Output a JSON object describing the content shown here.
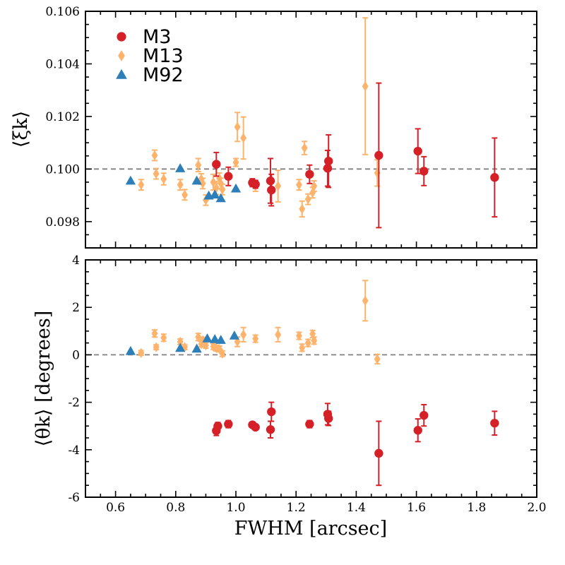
{
  "chart_data": {
    "type": "scatter",
    "x_label": "FWHM [arcsec]",
    "x_range": [
      0.5,
      2.0
    ],
    "x_ticks": [
      "0.6",
      "0.8",
      "1.0",
      "1.2",
      "1.4",
      "1.6",
      "1.8",
      "2.0"
    ],
    "colors": {
      "M3": "#d62027",
      "M13": "#fdb36b",
      "M92": "#2c7fb8",
      "reference": "#808080"
    },
    "legend": {
      "position": "upper-left",
      "entries": [
        {
          "name": "M3",
          "marker": "circle"
        },
        {
          "name": "M13",
          "marker": "diamond"
        },
        {
          "name": "M92",
          "marker": "triangle"
        }
      ]
    },
    "panels": [
      {
        "id": "top",
        "y_label": "⟨ξk⟩",
        "y_range": [
          0.097,
          0.106
        ],
        "y_ticks": [
          "0.098",
          "0.100",
          "0.102",
          "0.104",
          "0.106"
        ],
        "reference_line": 0.1,
        "series": [
          {
            "name": "M3",
            "marker": "circle",
            "points": [
              {
                "x": 0.935,
                "y": 0.10018,
                "err": 0.00045
              },
              {
                "x": 0.975,
                "y": 0.09972,
                "err": 0.00035
              },
              {
                "x": 1.055,
                "y": 0.09948,
                "err": 0.00015
              },
              {
                "x": 1.065,
                "y": 0.09942,
                "err": 0.00015
              },
              {
                "x": 1.115,
                "y": 0.09955,
                "err": 0.00085
              },
              {
                "x": 1.118,
                "y": 0.0992,
                "err": 0.0006
              },
              {
                "x": 1.245,
                "y": 0.0998,
                "err": 0.00035
              },
              {
                "x": 1.305,
                "y": 0.10003,
                "err": 0.00068
              },
              {
                "x": 1.308,
                "y": 0.1003,
                "err": 0.001
              },
              {
                "x": 1.475,
                "y": 0.10052,
                "err": 0.00275
              },
              {
                "x": 1.605,
                "y": 0.10068,
                "err": 0.00085
              },
              {
                "x": 1.625,
                "y": 0.09992,
                "err": 0.00055
              },
              {
                "x": 1.86,
                "y": 0.09968,
                "err": 0.0015
              }
            ]
          },
          {
            "name": "M13",
            "marker": "diamond",
            "points": [
              {
                "x": 0.685,
                "y": 0.0994,
                "err": 0.0002
              },
              {
                "x": 0.73,
                "y": 0.10052,
                "err": 0.0002
              },
              {
                "x": 0.735,
                "y": 0.09982,
                "err": 0.0002
              },
              {
                "x": 0.76,
                "y": 0.09962,
                "err": 0.00022
              },
              {
                "x": 0.815,
                "y": 0.0994,
                "err": 0.0002
              },
              {
                "x": 0.83,
                "y": 0.09902,
                "err": 0.0002
              },
              {
                "x": 0.875,
                "y": 0.10015,
                "err": 0.00025
              },
              {
                "x": 0.885,
                "y": 0.09962,
                "err": 0.0002
              },
              {
                "x": 0.89,
                "y": 0.09945,
                "err": 0.0002
              },
              {
                "x": 0.9,
                "y": 0.09882,
                "err": 0.0002
              },
              {
                "x": 0.925,
                "y": 0.0995,
                "err": 0.0003
              },
              {
                "x": 0.935,
                "y": 0.09928,
                "err": 0.00025
              },
              {
                "x": 0.945,
                "y": 0.09965,
                "err": 0.0002
              },
              {
                "x": 0.95,
                "y": 0.09945,
                "err": 0.0002
              },
              {
                "x": 0.955,
                "y": 0.09922,
                "err": 0.0002
              },
              {
                "x": 1.0,
                "y": 0.10025,
                "err": 0.00015
              },
              {
                "x": 1.005,
                "y": 0.1016,
                "err": 0.00055
              },
              {
                "x": 1.025,
                "y": 0.10118,
                "err": 0.0008
              },
              {
                "x": 1.065,
                "y": 0.09935,
                "err": 0.0002
              },
              {
                "x": 1.14,
                "y": 0.09935,
                "err": 0.0006
              },
              {
                "x": 1.21,
                "y": 0.0994,
                "err": 0.0002
              },
              {
                "x": 1.22,
                "y": 0.09848,
                "err": 0.0003
              },
              {
                "x": 1.228,
                "y": 0.1008,
                "err": 0.00025
              },
              {
                "x": 1.24,
                "y": 0.09885,
                "err": 0.0002
              },
              {
                "x": 1.255,
                "y": 0.0991,
                "err": 0.0002
              },
              {
                "x": 1.26,
                "y": 0.09935,
                "err": 0.0002
              },
              {
                "x": 1.43,
                "y": 0.10315,
                "err": 0.0026
              },
              {
                "x": 1.47,
                "y": 0.09985,
                "err": 0.0005
              }
            ]
          },
          {
            "name": "M92",
            "marker": "triangle",
            "points": [
              {
                "x": 0.65,
                "y": 0.09955,
                "err": 0
              },
              {
                "x": 0.815,
                "y": 0.10002,
                "err": 0
              },
              {
                "x": 0.87,
                "y": 0.09955,
                "err": 0
              },
              {
                "x": 0.91,
                "y": 0.09898,
                "err": 0
              },
              {
                "x": 0.93,
                "y": 0.09902,
                "err": 0
              },
              {
                "x": 0.95,
                "y": 0.09888,
                "err": 0
              },
              {
                "x": 1.0,
                "y": 0.09925,
                "err": 0
              }
            ]
          }
        ]
      },
      {
        "id": "bottom",
        "y_label": "⟨θk⟩ [degrees]",
        "y_range": [
          -6,
          4
        ],
        "y_ticks": [
          "4",
          "2",
          "0",
          "-2",
          "-4",
          "-6"
        ],
        "reference_line": 0,
        "series": [
          {
            "name": "M3",
            "marker": "circle",
            "points": [
              {
                "x": 0.935,
                "y": -3.2,
                "err": 0.2
              },
              {
                "x": 0.94,
                "y": -3.0,
                "err": 0.15
              },
              {
                "x": 0.975,
                "y": -2.92,
                "err": 0.15
              },
              {
                "x": 1.055,
                "y": -2.95,
                "err": 0.1
              },
              {
                "x": 1.065,
                "y": -3.05,
                "err": 0.1
              },
              {
                "x": 1.115,
                "y": -3.15,
                "err": 0.35
              },
              {
                "x": 1.118,
                "y": -2.4,
                "err": 0.4
              },
              {
                "x": 1.245,
                "y": -2.92,
                "err": 0.15
              },
              {
                "x": 1.305,
                "y": -2.5,
                "err": 0.45
              },
              {
                "x": 1.308,
                "y": -2.68,
                "err": 0.3
              },
              {
                "x": 1.475,
                "y": -4.15,
                "err": 1.35
              },
              {
                "x": 1.605,
                "y": -3.18,
                "err": 0.48
              },
              {
                "x": 1.625,
                "y": -2.55,
                "err": 0.45
              },
              {
                "x": 1.86,
                "y": -2.88,
                "err": 0.5
              }
            ]
          },
          {
            "name": "M13",
            "marker": "diamond",
            "points": [
              {
                "x": 0.685,
                "y": 0.08,
                "err": 0.1
              },
              {
                "x": 0.73,
                "y": 0.9,
                "err": 0.15
              },
              {
                "x": 0.735,
                "y": 0.32,
                "err": 0.1
              },
              {
                "x": 0.76,
                "y": 0.72,
                "err": 0.15
              },
              {
                "x": 0.815,
                "y": 0.55,
                "err": 0.12
              },
              {
                "x": 0.83,
                "y": 0.32,
                "err": 0.1
              },
              {
                "x": 0.875,
                "y": 0.75,
                "err": 0.15
              },
              {
                "x": 0.885,
                "y": 0.45,
                "err": 0.12
              },
              {
                "x": 0.89,
                "y": 0.62,
                "err": 0.12
              },
              {
                "x": 0.9,
                "y": 0.4,
                "err": 0.12
              },
              {
                "x": 0.925,
                "y": 0.35,
                "err": 0.12
              },
              {
                "x": 0.935,
                "y": 0.28,
                "err": 0.12
              },
              {
                "x": 0.945,
                "y": 0.25,
                "err": 0.12
              },
              {
                "x": 0.955,
                "y": 0.05,
                "err": 0.12
              },
              {
                "x": 1.005,
                "y": 0.55,
                "err": 0.2
              },
              {
                "x": 1.025,
                "y": 0.85,
                "err": 0.3
              },
              {
                "x": 1.065,
                "y": 0.68,
                "err": 0.15
              },
              {
                "x": 1.14,
                "y": 0.85,
                "err": 0.3
              },
              {
                "x": 1.21,
                "y": 0.8,
                "err": 0.15
              },
              {
                "x": 1.22,
                "y": 0.3,
                "err": 0.15
              },
              {
                "x": 1.24,
                "y": 0.5,
                "err": 0.15
              },
              {
                "x": 1.255,
                "y": 0.88,
                "err": 0.15
              },
              {
                "x": 1.26,
                "y": 0.6,
                "err": 0.15
              },
              {
                "x": 1.43,
                "y": 2.28,
                "err": 0.85
              },
              {
                "x": 1.47,
                "y": -0.18,
                "err": 0.2
              }
            ]
          },
          {
            "name": "M92",
            "marker": "triangle",
            "points": [
              {
                "x": 0.65,
                "y": 0.15,
                "err": 0
              },
              {
                "x": 0.815,
                "y": 0.28,
                "err": 0
              },
              {
                "x": 0.87,
                "y": 0.25,
                "err": 0
              },
              {
                "x": 0.905,
                "y": 0.68,
                "err": 0
              },
              {
                "x": 0.93,
                "y": 0.65,
                "err": 0
              },
              {
                "x": 0.95,
                "y": 0.62,
                "err": 0
              },
              {
                "x": 0.995,
                "y": 0.8,
                "err": 0
              }
            ]
          }
        ]
      }
    ]
  }
}
